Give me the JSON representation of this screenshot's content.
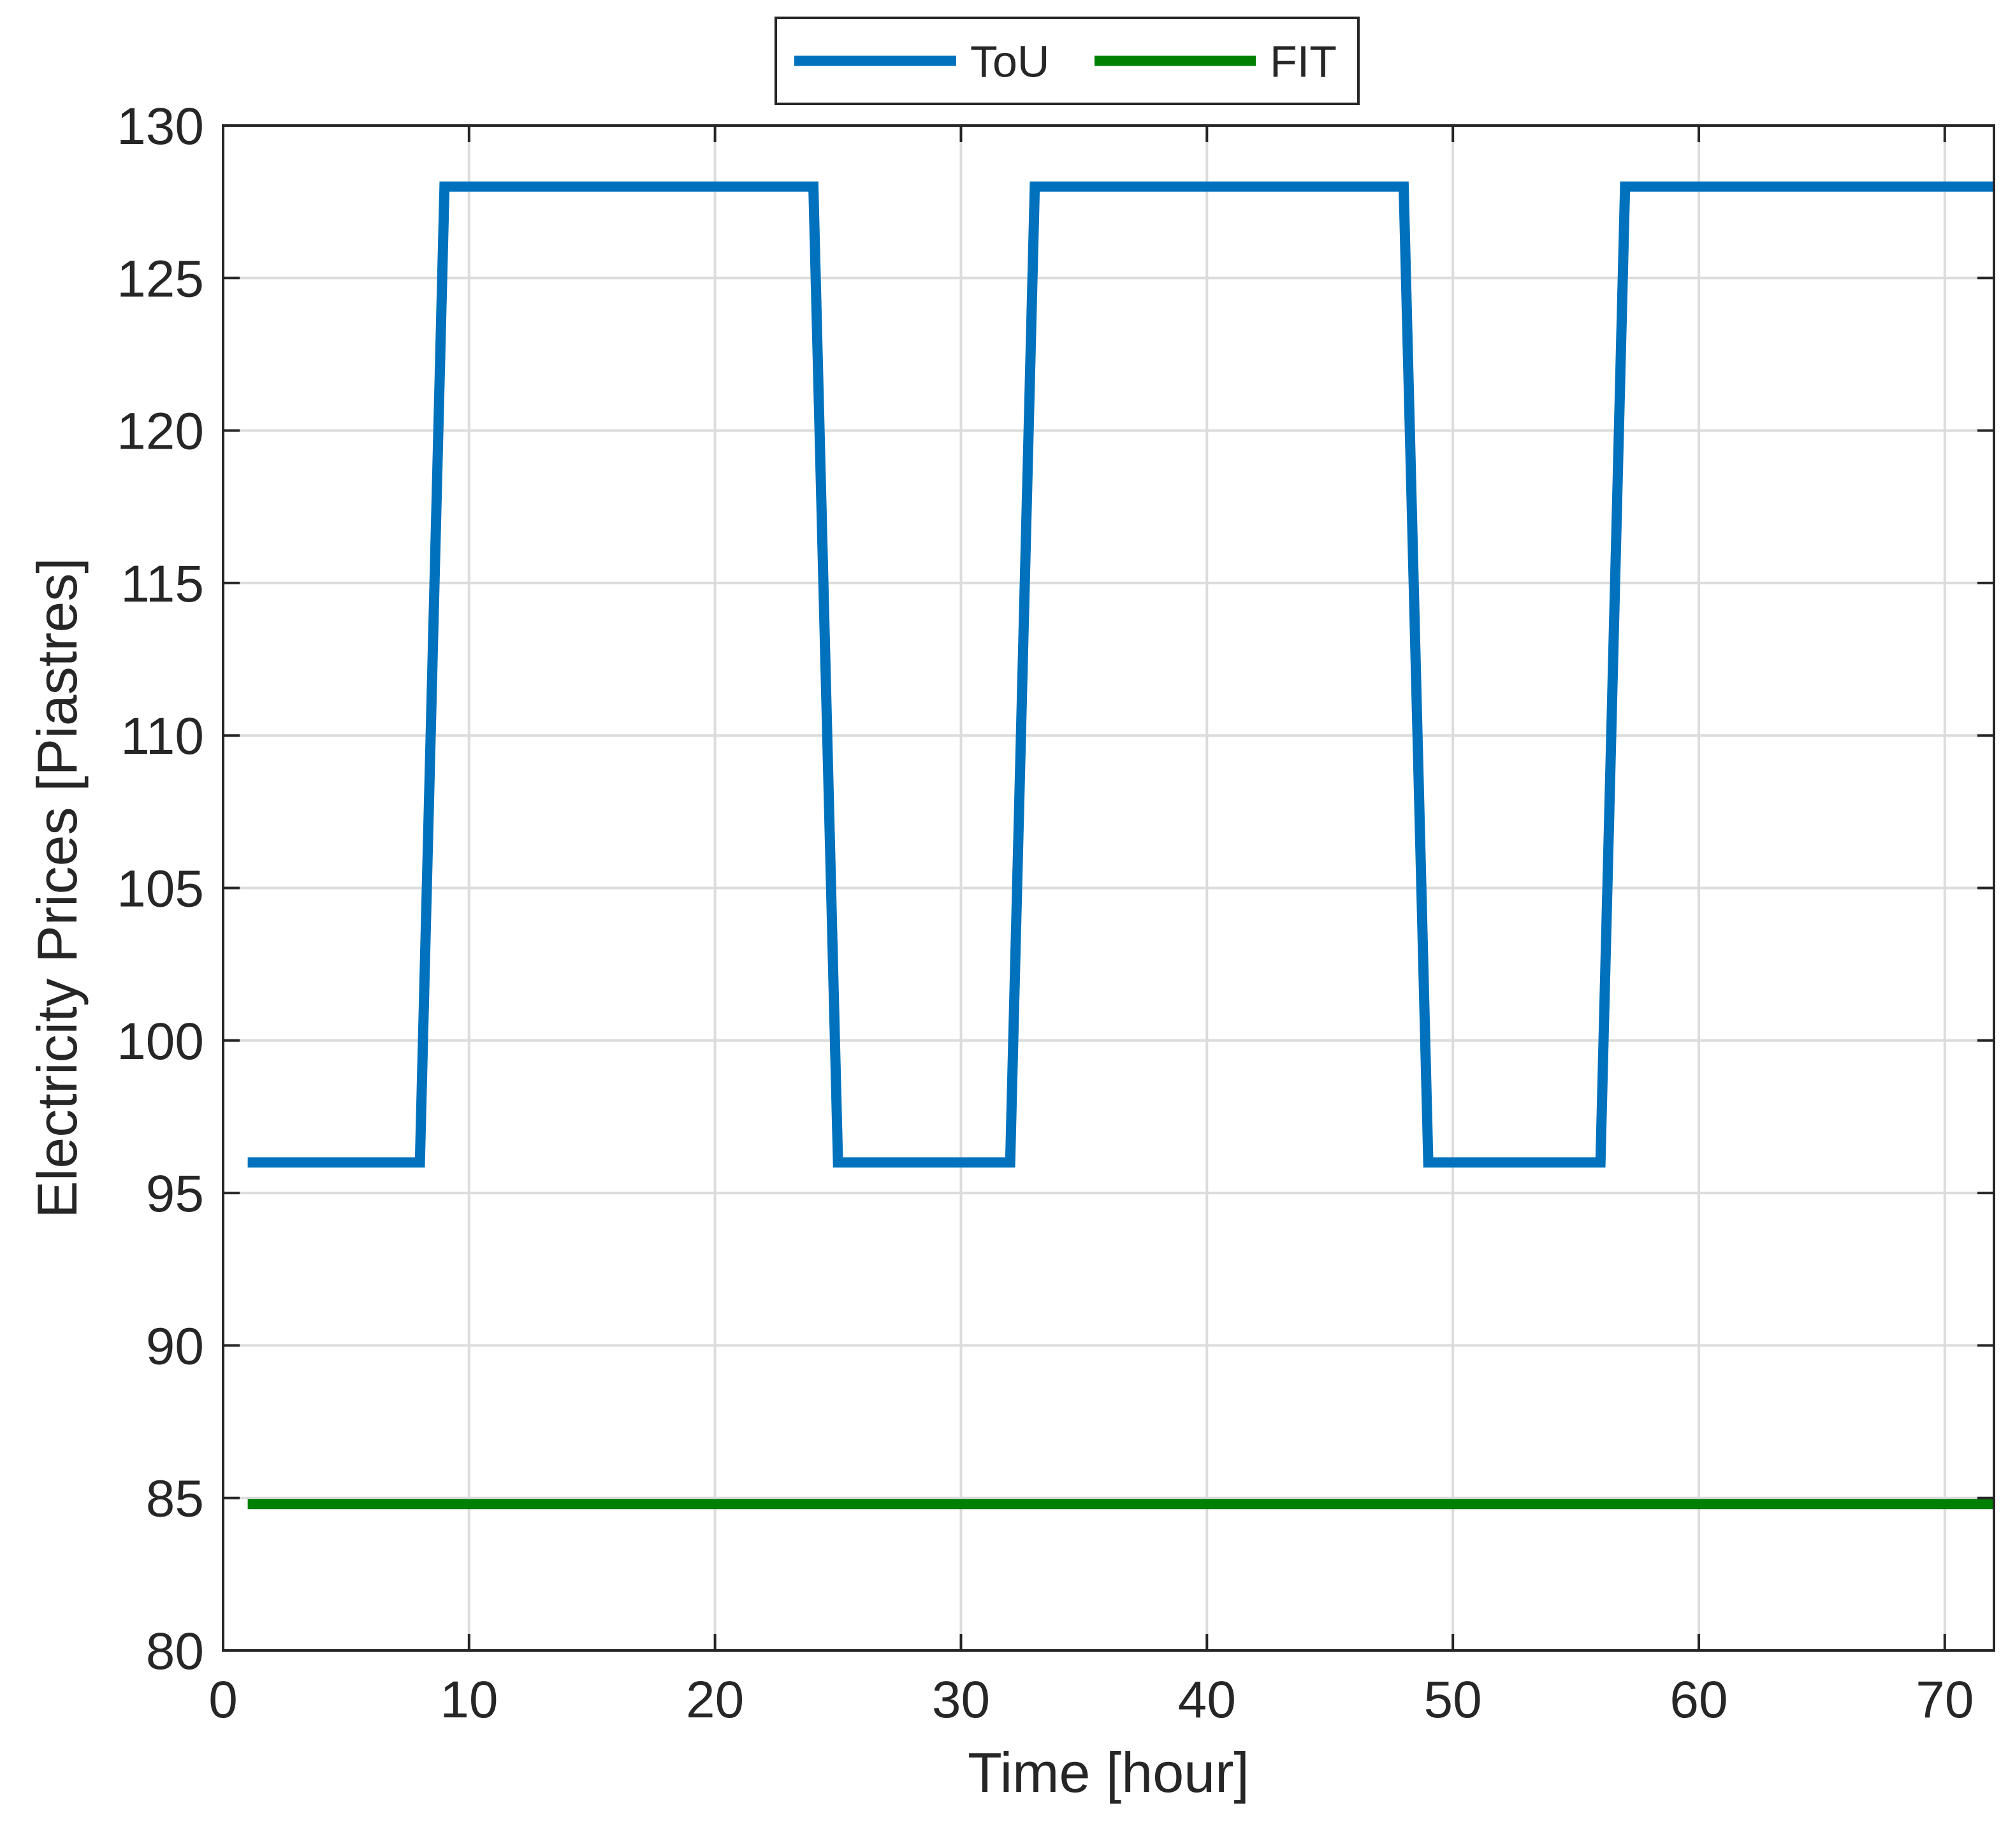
{
  "chart_data": {
    "type": "line",
    "title": "",
    "xlabel": "Time [hour]",
    "ylabel": "Electricity Prices [Piastres]",
    "xlim": [
      0,
      72
    ],
    "ylim": [
      80,
      130
    ],
    "xticks": [
      0,
      10,
      20,
      30,
      40,
      50,
      60,
      70
    ],
    "yticks": [
      80,
      85,
      90,
      95,
      100,
      105,
      110,
      115,
      120,
      125,
      130
    ],
    "grid": true,
    "legend_position": "top-center-outside",
    "series": [
      {
        "name": "ToU",
        "color": "#0072BD",
        "x": [
          1,
          2,
          3,
          4,
          5,
          6,
          7,
          8,
          9,
          10,
          11,
          12,
          13,
          14,
          15,
          16,
          17,
          18,
          19,
          20,
          21,
          22,
          23,
          24,
          25,
          26,
          27,
          28,
          29,
          30,
          31,
          32,
          33,
          34,
          35,
          36,
          37,
          38,
          39,
          40,
          41,
          42,
          43,
          44,
          45,
          46,
          47,
          48,
          49,
          50,
          51,
          52,
          53,
          54,
          55,
          56,
          57,
          58,
          59,
          60,
          61,
          62,
          63,
          64,
          65,
          66,
          67,
          68,
          69,
          70,
          71,
          72
        ],
        "y": [
          96,
          96,
          96,
          96,
          96,
          96,
          96,
          96,
          128,
          128,
          128,
          128,
          128,
          128,
          128,
          128,
          128,
          128,
          128,
          128,
          128,
          128,
          128,
          128,
          96,
          96,
          96,
          96,
          96,
          96,
          96,
          96,
          128,
          128,
          128,
          128,
          128,
          128,
          128,
          128,
          128,
          128,
          128,
          128,
          128,
          128,
          128,
          128,
          96,
          96,
          96,
          96,
          96,
          96,
          96,
          96,
          128,
          128,
          128,
          128,
          128,
          128,
          128,
          128,
          128,
          128,
          128,
          128,
          128,
          128,
          128,
          128
        ]
      },
      {
        "name": "FIT",
        "color": "#008000",
        "x": [
          1,
          72
        ],
        "y": [
          84.8,
          84.8
        ]
      }
    ]
  }
}
